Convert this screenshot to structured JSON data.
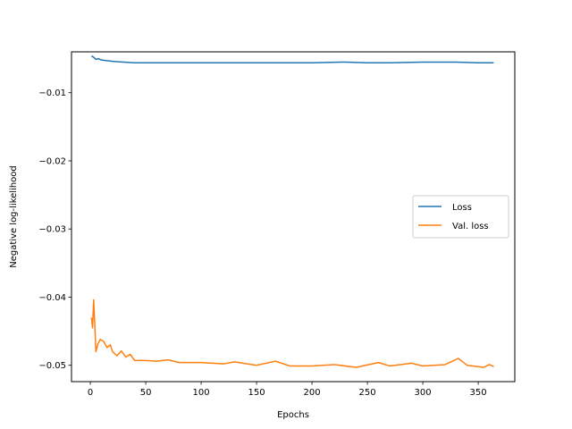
{
  "chart_data": {
    "type": "line",
    "title": "",
    "xlabel": "Epochs",
    "ylabel": "Negative log-likelihood",
    "xlim": [
      -17,
      383
    ],
    "ylim": [
      -0.0524,
      -0.004
    ],
    "xticks": [
      0,
      50,
      100,
      150,
      200,
      250,
      300,
      350
    ],
    "yticks": [
      -0.05,
      -0.04,
      -0.03,
      -0.02,
      -0.01
    ],
    "ytick_labels": [
      "−0.05",
      "−0.04",
      "−0.03",
      "−0.02",
      "−0.01"
    ],
    "grid": false,
    "legend_position": "center-right",
    "series": [
      {
        "name": "Loss",
        "color": "#1f77b4",
        "points": [
          [
            1,
            -0.0046
          ],
          [
            3,
            -0.0048
          ],
          [
            5,
            -0.0051
          ],
          [
            7,
            -0.005
          ],
          [
            10,
            -0.0052
          ],
          [
            15,
            -0.0053
          ],
          [
            20,
            -0.0054
          ],
          [
            30,
            -0.0055
          ],
          [
            40,
            -0.0056
          ],
          [
            60,
            -0.0056
          ],
          [
            80,
            -0.0056
          ],
          [
            100,
            -0.0056
          ],
          [
            120,
            -0.0056
          ],
          [
            150,
            -0.0056
          ],
          [
            180,
            -0.0056
          ],
          [
            200,
            -0.0056
          ],
          [
            230,
            -0.0055
          ],
          [
            250,
            -0.0056
          ],
          [
            270,
            -0.0056
          ],
          [
            300,
            -0.0055
          ],
          [
            330,
            -0.0055
          ],
          [
            350,
            -0.0056
          ],
          [
            364,
            -0.0056
          ]
        ]
      },
      {
        "name": "Val. loss",
        "color": "#ff7f0e",
        "points": [
          [
            1,
            -0.043
          ],
          [
            2,
            -0.0445
          ],
          [
            3,
            -0.0404
          ],
          [
            4,
            -0.044
          ],
          [
            5,
            -0.048
          ],
          [
            7,
            -0.0468
          ],
          [
            9,
            -0.0462
          ],
          [
            12,
            -0.0465
          ],
          [
            15,
            -0.0474
          ],
          [
            18,
            -0.047
          ],
          [
            20,
            -0.048
          ],
          [
            24,
            -0.0486
          ],
          [
            28,
            -0.0479
          ],
          [
            32,
            -0.0488
          ],
          [
            36,
            -0.0484
          ],
          [
            40,
            -0.0493
          ],
          [
            50,
            -0.0493
          ],
          [
            60,
            -0.0494
          ],
          [
            70,
            -0.0492
          ],
          [
            80,
            -0.0496
          ],
          [
            100,
            -0.0496
          ],
          [
            120,
            -0.0498
          ],
          [
            130,
            -0.0495
          ],
          [
            150,
            -0.05
          ],
          [
            167,
            -0.0494
          ],
          [
            180,
            -0.0501
          ],
          [
            200,
            -0.0501
          ],
          [
            220,
            -0.0499
          ],
          [
            240,
            -0.0503
          ],
          [
            260,
            -0.0496
          ],
          [
            270,
            -0.0501
          ],
          [
            290,
            -0.0497
          ],
          [
            300,
            -0.0501
          ],
          [
            320,
            -0.0499
          ],
          [
            332,
            -0.049
          ],
          [
            340,
            -0.05
          ],
          [
            355,
            -0.0503
          ],
          [
            360,
            -0.0499
          ],
          [
            364,
            -0.0502
          ]
        ]
      }
    ]
  }
}
